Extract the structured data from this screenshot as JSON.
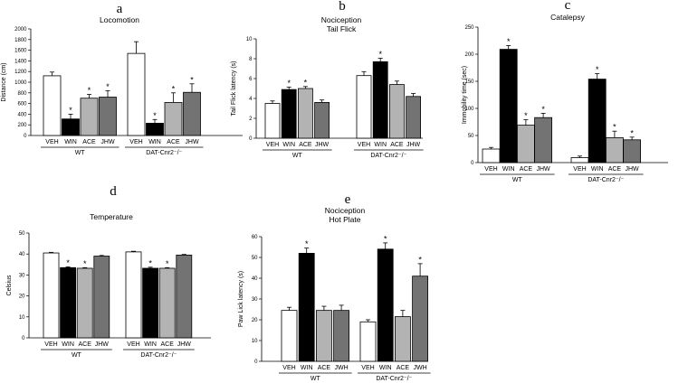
{
  "colors": {
    "VEH": "#ffffff",
    "WIN": "#000000",
    "ACE": "#b3b3b3",
    "JHW": "#737373",
    "stroke": "#000000"
  },
  "chart_data": [
    {
      "panel": "a",
      "type": "bar",
      "title": "Locomotion",
      "ylabel": "Distance (cm)",
      "ylim": [
        0,
        2000
      ],
      "yticks": [
        0,
        200,
        400,
        600,
        800,
        1000,
        1200,
        1400,
        1600,
        1800,
        2000
      ],
      "categories": [
        "VEH",
        "WIN",
        "ACE",
        "JHW"
      ],
      "groups": [
        {
          "label": "WT",
          "values": [
            1120,
            310,
            700,
            720
          ],
          "errors": [
            70,
            90,
            70,
            120
          ],
          "sig": [
            false,
            true,
            true,
            true
          ]
        },
        {
          "label": "DAT-Cnr2⁻/⁻",
          "values": [
            1540,
            230,
            620,
            810
          ],
          "errors": [
            220,
            70,
            180,
            160
          ],
          "sig": [
            false,
            true,
            true,
            true
          ]
        }
      ]
    },
    {
      "panel": "b",
      "type": "bar",
      "title": "Nociception",
      "subtitle": "Tail Flick",
      "ylabel": "Tail Flick latency (s)",
      "ylim": [
        0,
        10
      ],
      "yticks": [
        0,
        2,
        4,
        6,
        8,
        10
      ],
      "categories": [
        "VEH",
        "WIN",
        "ACE",
        "JHW"
      ],
      "groups": [
        {
          "label": "WT",
          "values": [
            3.5,
            4.9,
            5.0,
            3.6
          ],
          "errors": [
            0.25,
            0.25,
            0.2,
            0.25
          ],
          "sig": [
            false,
            true,
            true,
            false
          ]
        },
        {
          "label": "DAT-Cnr2⁻/⁻",
          "values": [
            6.3,
            7.7,
            5.4,
            4.2
          ],
          "errors": [
            0.4,
            0.35,
            0.35,
            0.3
          ],
          "sig": [
            false,
            true,
            false,
            false
          ]
        }
      ]
    },
    {
      "panel": "c",
      "type": "bar",
      "title": "Catalepsy",
      "ylabel": "Immobility time (sec)",
      "ylim": [
        0,
        250
      ],
      "yticks": [
        0,
        50,
        100,
        150,
        200,
        250
      ],
      "categories": [
        "VEH",
        "WIN",
        "ACE",
        "JHW"
      ],
      "groups": [
        {
          "label": "WT",
          "values": [
            25,
            209,
            69,
            83
          ],
          "errors": [
            3,
            7,
            10,
            8
          ],
          "sig": [
            false,
            true,
            true,
            true
          ]
        },
        {
          "label": "DAT-Cnr2⁻/⁻",
          "values": [
            9,
            154,
            46,
            42
          ],
          "errors": [
            3,
            10,
            12,
            5
          ],
          "sig": [
            false,
            true,
            true,
            true
          ]
        }
      ]
    },
    {
      "panel": "d",
      "type": "bar",
      "title": "Temperature",
      "ylabel": "Celsius",
      "ylim": [
        0,
        50
      ],
      "yticks": [
        0,
        10,
        20,
        30,
        40,
        50
      ],
      "categories": [
        "VEH",
        "WIN",
        "ACE",
        "JHW"
      ],
      "groups": [
        {
          "label": "WT",
          "values": [
            40.5,
            33.5,
            33.2,
            39.0
          ],
          "errors": [
            0.3,
            0.4,
            0.3,
            0.3
          ],
          "sig": [
            false,
            true,
            true,
            false
          ]
        },
        {
          "label": "DAT-Cnr2⁻/⁻",
          "values": [
            41.0,
            33.2,
            33.2,
            39.5
          ],
          "errors": [
            0.3,
            0.5,
            0.3,
            0.3
          ],
          "sig": [
            false,
            true,
            true,
            false
          ]
        }
      ]
    },
    {
      "panel": "e",
      "type": "bar",
      "title": "Nociception",
      "subtitle": "Hot Plate",
      "ylabel": "Paw Lick latency (s)",
      "ylim": [
        0,
        60
      ],
      "yticks": [
        0,
        10,
        20,
        30,
        40,
        50,
        60
      ],
      "categories": [
        "VEH",
        "WIN",
        "ACE",
        "JWH"
      ],
      "groups": [
        {
          "label": "WT",
          "values": [
            24.5,
            52,
            24.5,
            24.5
          ],
          "errors": [
            1.5,
            2.5,
            2,
            2.5
          ],
          "sig": [
            false,
            true,
            false,
            false
          ]
        },
        {
          "label": "DAT-Cnr2⁻/⁻",
          "values": [
            19,
            54,
            21.5,
            41
          ],
          "errors": [
            1,
            3,
            3,
            6
          ],
          "sig": [
            false,
            true,
            false,
            true
          ]
        }
      ]
    }
  ]
}
